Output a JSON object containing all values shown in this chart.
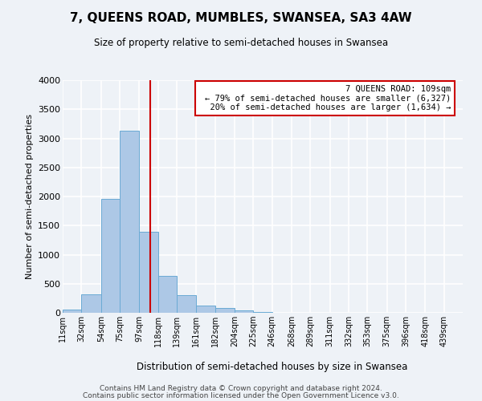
{
  "title": "7, QUEENS ROAD, MUMBLES, SWANSEA, SA3 4AW",
  "subtitle": "Size of property relative to semi-detached houses in Swansea",
  "xlabel": "Distribution of semi-detached houses by size in Swansea",
  "ylabel": "Number of semi-detached properties",
  "bar_labels": [
    "11sqm",
    "32sqm",
    "54sqm",
    "75sqm",
    "97sqm",
    "118sqm",
    "139sqm",
    "161sqm",
    "182sqm",
    "204sqm",
    "225sqm",
    "246sqm",
    "268sqm",
    "289sqm",
    "311sqm",
    "332sqm",
    "353sqm",
    "375sqm",
    "396sqm",
    "418sqm",
    "439sqm"
  ],
  "bar_values": [
    50,
    320,
    1960,
    3130,
    1390,
    640,
    300,
    130,
    80,
    40,
    10,
    5,
    2,
    1,
    0,
    0,
    0,
    0,
    0,
    0,
    0
  ],
  "bar_color": "#adc8e6",
  "bar_edge_color": "#6aaad4",
  "pct_smaller": 79,
  "n_smaller": 6327,
  "pct_larger": 20,
  "n_larger": 1634,
  "annotation_box_color": "#ffffff",
  "annotation_box_edge": "#cc0000",
  "line_color": "#cc0000",
  "ylim": [
    0,
    4000
  ],
  "yticks": [
    0,
    500,
    1000,
    1500,
    2000,
    2500,
    3000,
    3500,
    4000
  ],
  "bin_edges": [
    11,
    32,
    54,
    75,
    97,
    118,
    139,
    161,
    182,
    204,
    225,
    246,
    268,
    289,
    311,
    332,
    353,
    375,
    396,
    418,
    439,
    460
  ],
  "footer_line1": "Contains HM Land Registry data © Crown copyright and database right 2024.",
  "footer_line2": "Contains public sector information licensed under the Open Government Licence v3.0.",
  "bg_color": "#eef2f7",
  "grid_color": "#ffffff"
}
